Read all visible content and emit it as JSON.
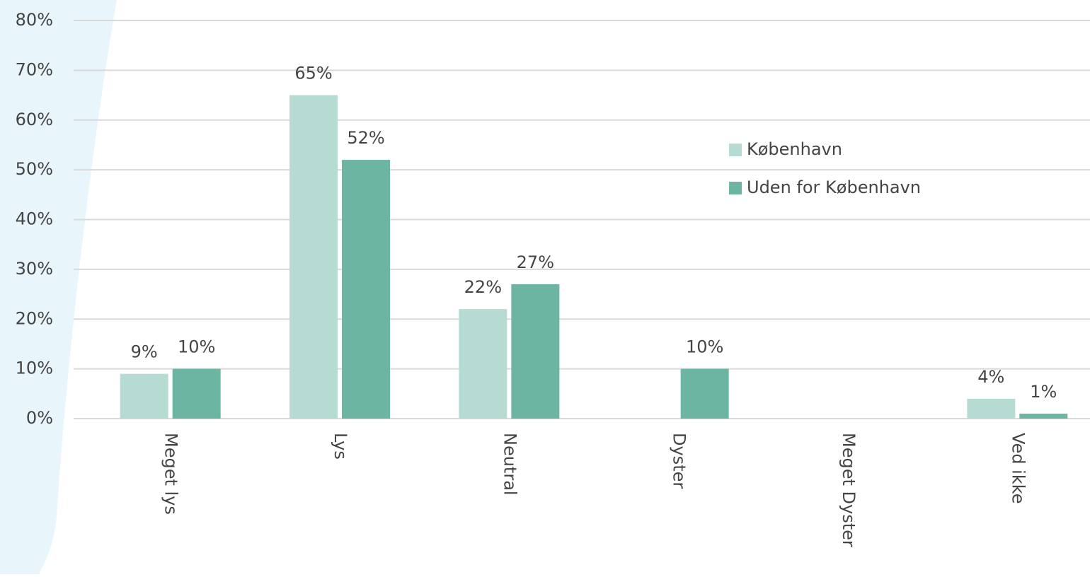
{
  "chart_data": {
    "type": "bar",
    "categories": [
      "Meget lys",
      "Lys",
      "Neutral",
      "Dyster",
      "Meget Dyster",
      "Ved ikke"
    ],
    "series": [
      {
        "name": "København",
        "color": "#b5dbd3",
        "values": [
          9,
          65,
          22,
          null,
          null,
          4
        ],
        "value_labels": [
          "9%",
          "65%",
          "22%",
          null,
          null,
          "4%"
        ]
      },
      {
        "name": "Uden for København",
        "color": "#6db5a3",
        "values": [
          10,
          52,
          27,
          10,
          null,
          1
        ],
        "value_labels": [
          "10%",
          "52%",
          "27%",
          "10%",
          null,
          "1%"
        ]
      }
    ],
    "ylim": [
      0,
      80
    ],
    "yticks": [
      {
        "value": 0,
        "label": "0%"
      },
      {
        "value": 10,
        "label": "10%"
      },
      {
        "value": 20,
        "label": "20%"
      },
      {
        "value": 30,
        "label": "30%"
      },
      {
        "value": 40,
        "label": "40%"
      },
      {
        "value": 50,
        "label": "50%"
      },
      {
        "value": 60,
        "label": "60%"
      },
      {
        "value": 70,
        "label": "70%"
      },
      {
        "value": 80,
        "label": "80%"
      }
    ],
    "grid": true,
    "legend": "right"
  }
}
